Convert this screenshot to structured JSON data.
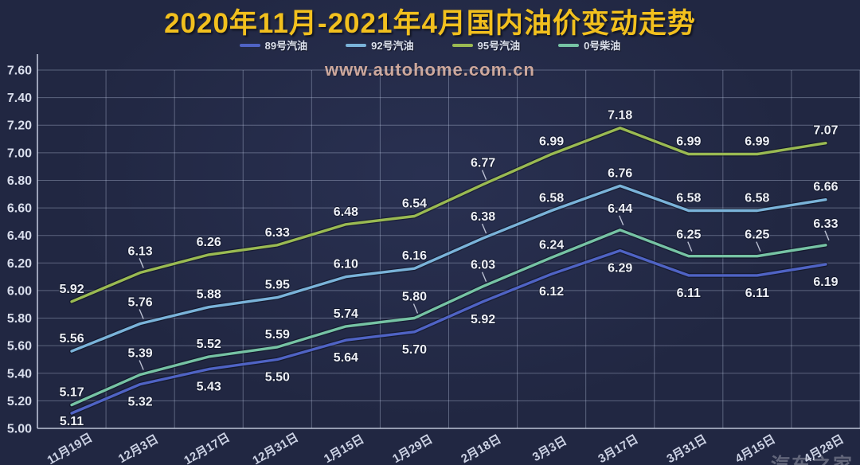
{
  "title": "2020年11月-2021年4月国内油价变动走势",
  "watermark": "www.autohome.com.cn",
  "corner_watermark": "汽车之家",
  "colors": {
    "background": "#212742",
    "title": "#f2c01e",
    "watermark": "#dcb2a2",
    "grid": "rgba(190,200,225,0.38)",
    "axis": "rgba(215,222,240,0.85)",
    "data_label": "#eef0f7",
    "series_89": "#4f63c4",
    "series_92": "#7ab3d9",
    "series_95": "#9aba52",
    "series_diesel": "#76c3a4"
  },
  "chart_data": {
    "type": "line",
    "title": "2020年11月-2021年4月国内油价变动走势",
    "x": [
      "11月19日",
      "12月3日",
      "12月17日",
      "12月31日",
      "1月15日",
      "1月29日",
      "2月18日",
      "3月3日",
      "3月17日",
      "3月31日",
      "4月15日",
      "4月28日"
    ],
    "series": [
      {
        "name": "89号汽油",
        "color": "#4f63c4",
        "label_position": "below",
        "leaders": [],
        "values": [
          5.11,
          5.32,
          5.43,
          5.5,
          5.64,
          5.7,
          5.92,
          6.12,
          6.29,
          6.11,
          6.11,
          6.19
        ]
      },
      {
        "name": "92号汽油",
        "color": "#7ab3d9",
        "label_position": "above",
        "leaders": [
          1,
          6
        ],
        "values": [
          5.56,
          5.76,
          5.88,
          5.95,
          6.1,
          6.16,
          6.38,
          6.58,
          6.76,
          6.58,
          6.58,
          6.66
        ]
      },
      {
        "name": "95号汽油",
        "color": "#9aba52",
        "label_position": "above",
        "leaders": [
          1,
          6
        ],
        "values": [
          5.92,
          6.13,
          6.26,
          6.33,
          6.48,
          6.54,
          6.77,
          6.99,
          7.18,
          6.99,
          6.99,
          7.07
        ]
      },
      {
        "name": "0号柴油",
        "color": "#76c3a4",
        "label_position": "above",
        "leaders": [
          1,
          5,
          6,
          8,
          9,
          10,
          11
        ],
        "values": [
          5.17,
          5.39,
          5.52,
          5.59,
          5.74,
          5.8,
          6.03,
          6.24,
          6.44,
          6.25,
          6.25,
          6.33
        ]
      }
    ],
    "ylim": [
      5.0,
      7.6
    ],
    "ytick_step": 0.2,
    "yticks": [
      "7.60",
      "7.40",
      "7.20",
      "7.00",
      "6.80",
      "6.60",
      "6.40",
      "6.20",
      "6.00",
      "5.80",
      "5.60",
      "5.40",
      "5.20",
      "5.00"
    ],
    "grid": true,
    "legend_position": "top",
    "xlabel": "",
    "ylabel": ""
  }
}
